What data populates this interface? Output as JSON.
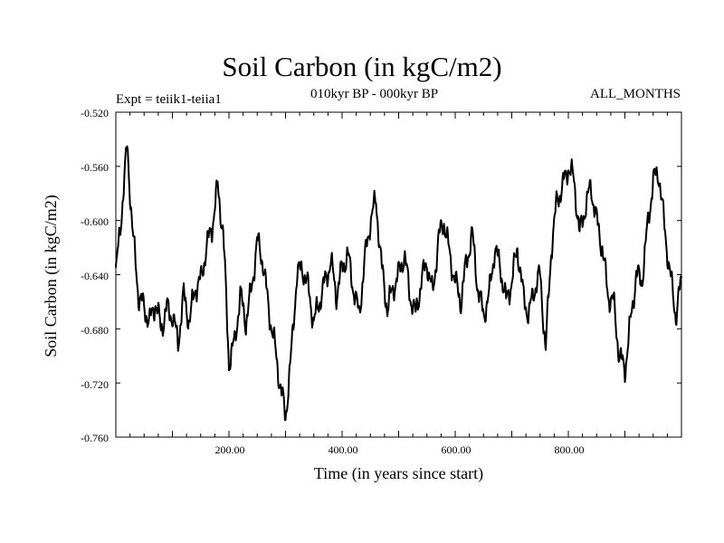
{
  "chart_data": {
    "type": "line",
    "title": "Soil Carbon (in kgC/m2)",
    "subtitle": "010kyr BP - 000kyr BP",
    "left_note": "Expt = teiik1-teiia1",
    "right_note": "ALL_MONTHS",
    "xlabel": "Time (in years since start)",
    "ylabel": "Soil Carbon (in kgC/m2)",
    "xlim": [
      0,
      1000
    ],
    "ylim": [
      -0.76,
      -0.52
    ],
    "y_ticks": [
      "-0.520",
      "-0.560",
      "-0.600",
      "-0.640",
      "-0.680",
      "-0.720",
      "-0.760"
    ],
    "x_ticks": [
      "200.00",
      "400.00",
      "600.00",
      "800.00"
    ],
    "series": [
      {
        "name": "Soil Carbon",
        "color": "#000000",
        "x": [
          0,
          10,
          20,
          30,
          40,
          50,
          60,
          70,
          80,
          90,
          100,
          110,
          120,
          130,
          140,
          150,
          160,
          170,
          180,
          190,
          200,
          210,
          220,
          230,
          240,
          250,
          260,
          270,
          280,
          290,
          300,
          310,
          320,
          330,
          340,
          350,
          360,
          370,
          380,
          390,
          400,
          410,
          420,
          430,
          440,
          450,
          460,
          470,
          480,
          490,
          500,
          510,
          520,
          530,
          540,
          550,
          560,
          570,
          580,
          590,
          600,
          610,
          620,
          630,
          640,
          650,
          660,
          670,
          680,
          690,
          700,
          710,
          720,
          730,
          740,
          750,
          760,
          770,
          780,
          790,
          800,
          810,
          820,
          830,
          840,
          850,
          860,
          870,
          880,
          890,
          900,
          910,
          920,
          930,
          940,
          950,
          960,
          970,
          980,
          990,
          1000
        ],
        "values": [
          -0.64,
          -0.595,
          -0.545,
          -0.61,
          -0.655,
          -0.665,
          -0.675,
          -0.66,
          -0.68,
          -0.665,
          -0.67,
          -0.69,
          -0.655,
          -0.675,
          -0.65,
          -0.645,
          -0.62,
          -0.605,
          -0.575,
          -0.61,
          -0.705,
          -0.69,
          -0.655,
          -0.675,
          -0.65,
          -0.615,
          -0.63,
          -0.665,
          -0.69,
          -0.72,
          -0.745,
          -0.7,
          -0.64,
          -0.635,
          -0.65,
          -0.675,
          -0.66,
          -0.645,
          -0.63,
          -0.655,
          -0.635,
          -0.625,
          -0.65,
          -0.67,
          -0.63,
          -0.6,
          -0.585,
          -0.635,
          -0.665,
          -0.65,
          -0.64,
          -0.625,
          -0.655,
          -0.67,
          -0.645,
          -0.63,
          -0.655,
          -0.615,
          -0.6,
          -0.625,
          -0.645,
          -0.66,
          -0.63,
          -0.61,
          -0.65,
          -0.67,
          -0.655,
          -0.62,
          -0.635,
          -0.66,
          -0.645,
          -0.62,
          -0.655,
          -0.67,
          -0.65,
          -0.64,
          -0.695,
          -0.62,
          -0.585,
          -0.575,
          -0.56,
          -0.57,
          -0.61,
          -0.59,
          -0.575,
          -0.6,
          -0.62,
          -0.655,
          -0.66,
          -0.7,
          -0.71,
          -0.675,
          -0.64,
          -0.645,
          -0.605,
          -0.57,
          -0.565,
          -0.605,
          -0.64,
          -0.67,
          -0.645
        ],
        "fine_noise_amplitude": 0.012
      }
    ]
  }
}
